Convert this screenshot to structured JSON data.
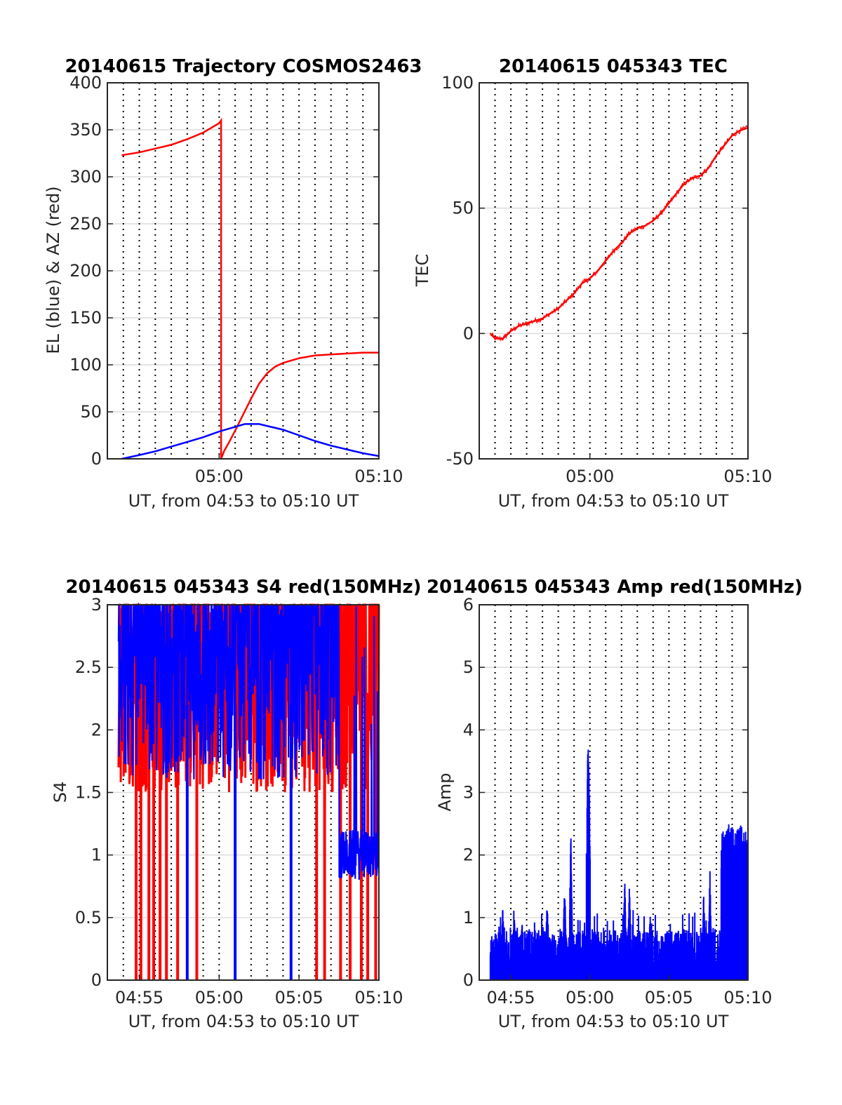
{
  "colors": {
    "red": "#ff0000",
    "blue": "#0000ff",
    "axis": "#262626",
    "grid": "#dcdcdc",
    "vgrid": "#000000"
  },
  "chart_data": [
    {
      "id": "trajectory",
      "type": "line",
      "title": "20140615 Trajectory COSMOS2463",
      "xlabel": "UT, from 04:53 to 05:10 UT",
      "ylabel": "EL (blue) & AZ (red)",
      "xlim_minutes": [
        -7,
        10
      ],
      "ylim": [
        0,
        400
      ],
      "yticks": [
        "0",
        "50",
        "100",
        "150",
        "200",
        "250",
        "300",
        "350",
        "400"
      ],
      "xticks": [
        {
          "t": 0,
          "label": "05:00"
        },
        {
          "t": 10,
          "label": "05:10"
        }
      ],
      "grid": "horizontal solid, vertical dotted every minute",
      "series": [
        {
          "color": "red",
          "x": [
            -6.1,
            -5,
            -4,
            -3,
            -2,
            -1,
            0,
            0.12,
            0.121,
            0.3,
            0.6,
            1,
            1.5,
            2,
            2.5,
            3,
            3.5,
            4,
            5,
            6,
            7,
            8,
            9,
            10
          ],
          "y": [
            323,
            326,
            330,
            334,
            340,
            347,
            357,
            360,
            0,
            8,
            17,
            30,
            47,
            64,
            80,
            91,
            98,
            102,
            107,
            110,
            111,
            112,
            113,
            113
          ]
        },
        {
          "color": "blue",
          "x": [
            -6.1,
            -5,
            -4,
            -3,
            -2,
            -1,
            0,
            1,
            1.6,
            2,
            2.5,
            3,
            4,
            5,
            6,
            7,
            8,
            9,
            10
          ],
          "y": [
            0,
            4,
            8,
            13,
            18,
            23,
            29,
            34,
            37,
            37,
            37,
            35,
            31,
            25,
            19,
            14,
            10,
            6,
            3
          ]
        }
      ]
    },
    {
      "id": "tec",
      "type": "line",
      "title": "20140615 045343 TEC",
      "xlabel": "UT, from 04:53 to 05:10 UT",
      "ylabel": "TEC",
      "xlim_minutes": [
        -7,
        10
      ],
      "ylim": [
        -50,
        100
      ],
      "yticks": [
        "-50",
        "0",
        "50",
        "100"
      ],
      "xticks": [
        {
          "t": 0,
          "label": "05:00"
        },
        {
          "t": 10,
          "label": "05:10"
        }
      ],
      "series": [
        {
          "color": "red",
          "x": [
            -6.3,
            -6,
            -5.5,
            -5,
            -4.5,
            -4,
            -3.5,
            -3,
            -2.5,
            -2,
            -1.5,
            -1,
            -0.5,
            0,
            0.5,
            1,
            1.5,
            2,
            2.5,
            3,
            3.5,
            4,
            4.5,
            5,
            5.5,
            6,
            6.5,
            7,
            7.5,
            8,
            8.5,
            9,
            9.5,
            10
          ],
          "y": [
            0,
            -2,
            -2,
            1,
            3,
            4,
            5,
            6,
            8,
            10,
            13,
            16,
            20,
            22,
            25,
            29,
            33,
            36,
            40,
            42,
            43,
            45,
            48,
            52,
            56,
            60,
            62,
            63,
            66,
            71,
            75,
            79,
            81,
            82
          ]
        }
      ]
    },
    {
      "id": "s4",
      "type": "line",
      "title": "20140615 045343 S4 red(150MHz)",
      "xlabel": "UT, from 04:53 to 05:10 UT",
      "ylabel": "S4",
      "xlim_minutes": [
        -7,
        10
      ],
      "ylim": [
        0,
        3
      ],
      "yticks": [
        "0",
        "0.5",
        "1",
        "1.5",
        "2",
        "2.5",
        "3"
      ],
      "xticks": [
        {
          "t": -5,
          "label": "04:55"
        },
        {
          "t": 0,
          "label": "05:00"
        },
        {
          "t": 5,
          "label": "05:05"
        },
        {
          "t": 10,
          "label": "05:10"
        }
      ],
      "series": [
        {
          "color": "red",
          "x_range": [
            -6.3,
            10
          ],
          "typical_range": [
            1.5,
            3.0
          ],
          "drops_to_zero_at": [
            -5.2,
            -4.9,
            -4.4,
            -4.1,
            -3.7,
            -3.3,
            -2.6,
            -1.4,
            6.1,
            6.6,
            7.6,
            8.2,
            8.9,
            9.3,
            9.8
          ]
        },
        {
          "color": "blue",
          "x_range": [
            -6.3,
            10
          ],
          "typical_range": [
            1.6,
            3.0
          ],
          "drops_to_zero_at": [
            -2.0,
            1.0,
            4.5
          ],
          "late_segment": {
            "x_range": [
              7.5,
              10
            ],
            "y_range": [
              0.8,
              1.2
            ]
          }
        }
      ]
    },
    {
      "id": "amp",
      "type": "line",
      "title": "20140615 045343 Amp red(150MHz)",
      "xlabel": "UT, from 04:53 to 05:10 UT",
      "ylabel": "Amp",
      "xlim_minutes": [
        -7,
        10
      ],
      "ylim": [
        0,
        6
      ],
      "yticks": [
        "0",
        "1",
        "2",
        "3",
        "4",
        "5",
        "6"
      ],
      "xticks": [
        {
          "t": -5,
          "label": "04:55"
        },
        {
          "t": 0,
          "label": "05:00"
        },
        {
          "t": 5,
          "label": "05:05"
        },
        {
          "t": 10,
          "label": "05:10"
        }
      ],
      "series": [
        {
          "color": "blue",
          "x_range": [
            -6.3,
            10
          ],
          "baseline_max": 0.75,
          "peaks": [
            {
              "t": -5.5,
              "y": 1.3
            },
            {
              "t": -4.8,
              "y": 1.2
            },
            {
              "t": -4.3,
              "y": 1.0
            },
            {
              "t": -2.7,
              "y": 1.4
            },
            {
              "t": -1.6,
              "y": 1.6
            },
            {
              "t": -1.2,
              "y": 2.4
            },
            {
              "t": -0.1,
              "y": 4.35
            },
            {
              "t": 2.2,
              "y": 1.7
            },
            {
              "t": 2.5,
              "y": 1.6
            },
            {
              "t": 3.8,
              "y": 1.2
            },
            {
              "t": 7.2,
              "y": 1.4
            },
            {
              "t": 7.6,
              "y": 1.8
            },
            {
              "t": 8.5,
              "y": 2.5
            },
            {
              "t": 9.0,
              "y": 2.9
            },
            {
              "t": 9.9,
              "y": 2.6
            }
          ]
        }
      ]
    }
  ]
}
